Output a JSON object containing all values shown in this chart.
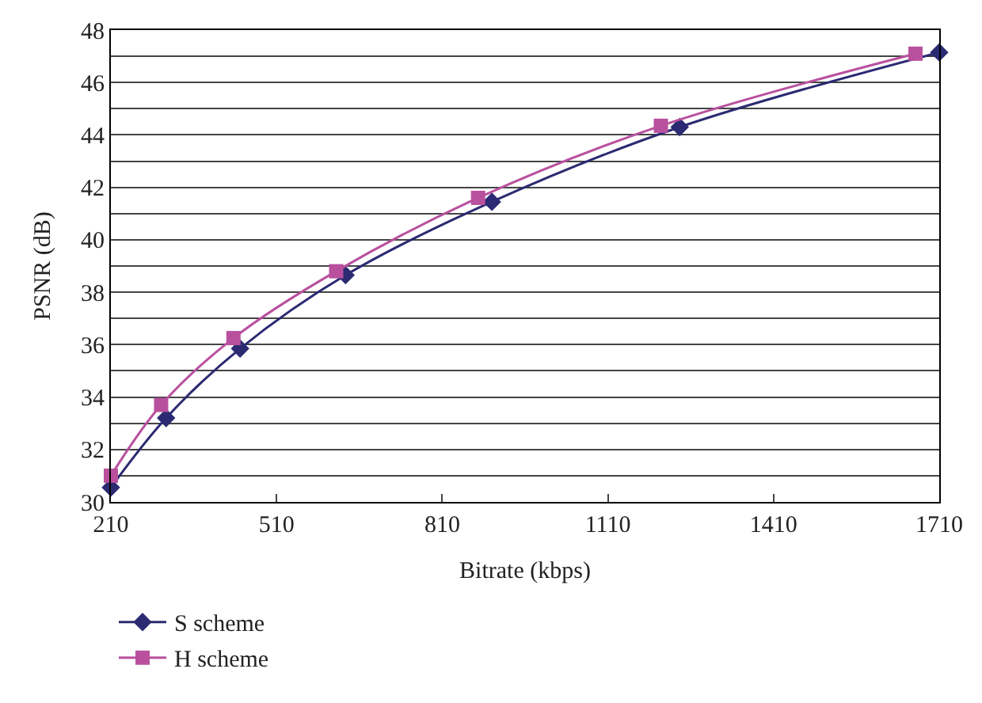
{
  "chart_data": {
    "type": "line",
    "xlabel": "Bitrate (kbps)",
    "ylabel": "PSNR (dB)",
    "xlim": [
      210,
      1710
    ],
    "xticks": [
      210,
      510,
      810,
      1110,
      1410,
      1710
    ],
    "ylim": [
      30,
      48
    ],
    "yticks": [
      30,
      {
        "value": 31,
        "label": null
      },
      32,
      {
        "value": 33,
        "label": null
      },
      34,
      {
        "value": 35,
        "label": null
      },
      36,
      {
        "value": 37,
        "label": null
      },
      38,
      {
        "value": 39,
        "label": null
      },
      40,
      {
        "value": 41,
        "label": null
      },
      42,
      {
        "value": 43,
        "label": null
      },
      44,
      {
        "value": 45,
        "label": null
      },
      46,
      {
        "value": 47,
        "label": null
      },
      48
    ],
    "grid": "y",
    "legend": "bottom left",
    "line_style": "solid",
    "series": [
      {
        "name": "S scheme",
        "color": "#2b2a72",
        "marker": "diamond",
        "x": [
          210,
          310,
          444,
          635,
          900,
          1240,
          1710
        ],
        "values": [
          30.55,
          33.2,
          35.85,
          38.65,
          41.45,
          44.3,
          47.15
        ]
      },
      {
        "name": "H scheme",
        "color": "#b9509e",
        "marker": "square",
        "x": [
          210,
          301,
          432,
          618,
          875,
          1206,
          1667
        ],
        "values": [
          31.0,
          33.7,
          36.25,
          38.8,
          41.6,
          44.35,
          47.1
        ]
      }
    ]
  }
}
